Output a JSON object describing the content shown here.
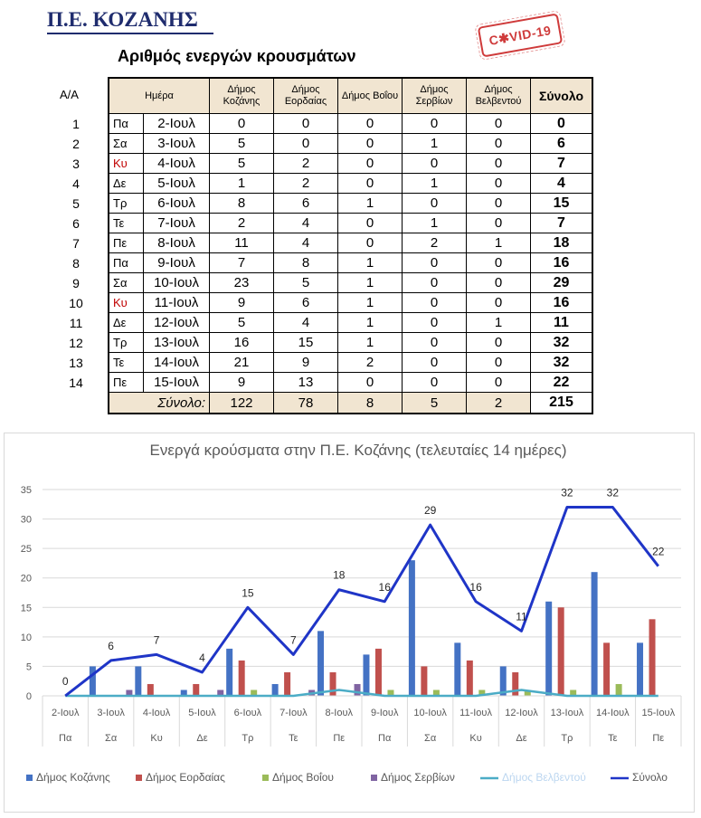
{
  "header": {
    "title": "Π.Ε. ΚΟΖΑΝΗΣ",
    "subtitle": "Αριθμός ενεργών κρουσμάτων",
    "stamp": "C✱VID-19"
  },
  "table": {
    "aa_label": "Α/Α",
    "columns": [
      "Ημέρα",
      "Δήμος Κοζάνης",
      "Δήμος Εορδαίας",
      "Δήμος Βοΐου",
      "Δήμος Σερβίων",
      "Δήμος Βελβεντού",
      "Σύνολο"
    ],
    "rows": [
      {
        "aa": "1",
        "day": "Πα",
        "date": "2-Ιουλ",
        "v": [
          "0",
          "0",
          "0",
          "0",
          "0"
        ],
        "total": "0",
        "red": false
      },
      {
        "aa": "2",
        "day": "Σα",
        "date": "3-Ιουλ",
        "v": [
          "5",
          "0",
          "0",
          "1",
          "0"
        ],
        "total": "6",
        "red": false
      },
      {
        "aa": "3",
        "day": "Κυ",
        "date": "4-Ιουλ",
        "v": [
          "5",
          "2",
          "0",
          "0",
          "0"
        ],
        "total": "7",
        "red": true
      },
      {
        "aa": "4",
        "day": "Δε",
        "date": "5-Ιουλ",
        "v": [
          "1",
          "2",
          "0",
          "1",
          "0"
        ],
        "total": "4",
        "red": false
      },
      {
        "aa": "5",
        "day": "Τρ",
        "date": "6-Ιουλ",
        "v": [
          "8",
          "6",
          "1",
          "0",
          "0"
        ],
        "total": "15",
        "red": false
      },
      {
        "aa": "6",
        "day": "Τε",
        "date": "7-Ιουλ",
        "v": [
          "2",
          "4",
          "0",
          "1",
          "0"
        ],
        "total": "7",
        "red": false
      },
      {
        "aa": "7",
        "day": "Πε",
        "date": "8-Ιουλ",
        "v": [
          "11",
          "4",
          "0",
          "2",
          "1"
        ],
        "total": "18",
        "red": false
      },
      {
        "aa": "8",
        "day": "Πα",
        "date": "9-Ιουλ",
        "v": [
          "7",
          "8",
          "1",
          "0",
          "0"
        ],
        "total": "16",
        "red": false
      },
      {
        "aa": "9",
        "day": "Σα",
        "date": "10-Ιουλ",
        "v": [
          "23",
          "5",
          "1",
          "0",
          "0"
        ],
        "total": "29",
        "red": false
      },
      {
        "aa": "10",
        "day": "Κυ",
        "date": "11-Ιουλ",
        "v": [
          "9",
          "6",
          "1",
          "0",
          "0"
        ],
        "total": "16",
        "red": true
      },
      {
        "aa": "11",
        "day": "Δε",
        "date": "12-Ιουλ",
        "v": [
          "5",
          "4",
          "1",
          "0",
          "1"
        ],
        "total": "11",
        "red": false
      },
      {
        "aa": "12",
        "day": "Τρ",
        "date": "13-Ιουλ",
        "v": [
          "16",
          "15",
          "1",
          "0",
          "0"
        ],
        "total": "32",
        "red": false
      },
      {
        "aa": "13",
        "day": "Τε",
        "date": "14-Ιουλ",
        "v": [
          "21",
          "9",
          "2",
          "0",
          "0"
        ],
        "total": "32",
        "red": false
      },
      {
        "aa": "14",
        "day": "Πε",
        "date": "15-Ιουλ",
        "v": [
          "9",
          "13",
          "0",
          "0",
          "0"
        ],
        "total": "22",
        "red": false
      }
    ],
    "footer": {
      "label": "Σύνολο:",
      "v": [
        "122",
        "78",
        "8",
        "5",
        "2"
      ],
      "total": "215"
    }
  },
  "chart_data": {
    "type": "bar",
    "title": "Ενεργά κρούσματα στην Π.Ε. Κοζάνης (τελευταίες 14 ημέρες)",
    "categories": [
      "2-Ιουλ",
      "3-Ιουλ",
      "4-Ιουλ",
      "5-Ιουλ",
      "6-Ιουλ",
      "7-Ιουλ",
      "8-Ιουλ",
      "9-Ιουλ",
      "10-Ιουλ",
      "11-Ιουλ",
      "12-Ιουλ",
      "13-Ιουλ",
      "14-Ιουλ",
      "15-Ιουλ"
    ],
    "sub_categories": [
      "Πα",
      "Σα",
      "Κυ",
      "Δε",
      "Τρ",
      "Τε",
      "Πε",
      "Πα",
      "Σα",
      "Κυ",
      "Δε",
      "Τρ",
      "Τε",
      "Πε"
    ],
    "ylim": [
      0,
      35
    ],
    "yticks": [
      0,
      5,
      10,
      15,
      20,
      25,
      30,
      35
    ],
    "grid": true,
    "legend_position": "bottom",
    "series": [
      {
        "name": "Δήμος Κοζάνης",
        "kind": "bar",
        "color": "#4472c4",
        "values": [
          0,
          5,
          5,
          1,
          8,
          2,
          11,
          7,
          23,
          9,
          5,
          16,
          21,
          9
        ]
      },
      {
        "name": "Δήμος Εορδαίας",
        "kind": "bar",
        "color": "#c0504d",
        "values": [
          0,
          0,
          2,
          2,
          6,
          4,
          4,
          8,
          5,
          6,
          4,
          15,
          9,
          13
        ]
      },
      {
        "name": "Δήμος Βοΐου",
        "kind": "bar",
        "color": "#9bbb59",
        "values": [
          0,
          0,
          0,
          0,
          1,
          0,
          0,
          1,
          1,
          1,
          1,
          1,
          2,
          0
        ]
      },
      {
        "name": "Δήμος Σερβίων",
        "kind": "bar",
        "color": "#8064a2",
        "values": [
          0,
          1,
          0,
          1,
          0,
          1,
          2,
          0,
          0,
          0,
          0,
          0,
          0,
          0
        ]
      },
      {
        "name": "Δήμος Βελβεντού",
        "kind": "line",
        "color": "#4bacc6",
        "values": [
          0,
          0,
          0,
          0,
          0,
          0,
          1,
          0,
          0,
          0,
          1,
          0,
          0,
          0
        ]
      },
      {
        "name": "Σύνολο",
        "kind": "line",
        "color": "#1f35c7",
        "values": [
          0,
          6,
          7,
          4,
          15,
          7,
          18,
          16,
          29,
          16,
          11,
          32,
          32,
          22
        ],
        "labels": [
          "0",
          "6",
          "7",
          "4",
          "15",
          "7",
          "18",
          "16",
          "29",
          "16",
          "11",
          "32",
          "32",
          "22"
        ]
      }
    ]
  }
}
